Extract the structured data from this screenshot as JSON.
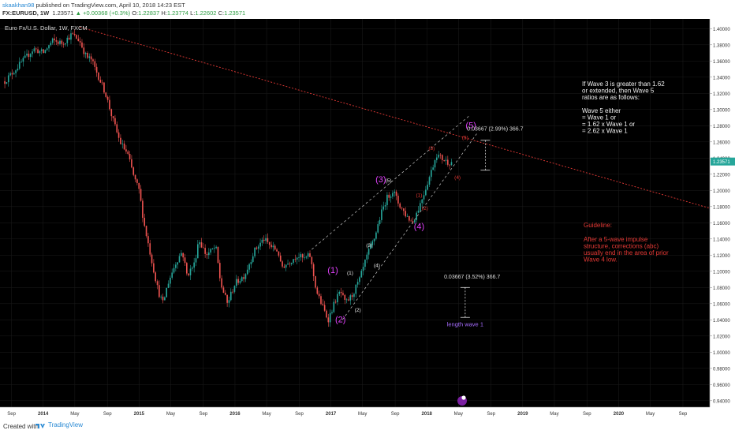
{
  "header": {
    "author": "skaakhan98",
    "published_text": " published on TradingView.com, April 10, 2018 14:23 EST",
    "symbol_line": "FX:EURUSD, 1W",
    "last": "1.23571",
    "change": "▲ +0.00368 (+0.3%)",
    "o_label": "O:",
    "o": "1.22837",
    "h_label": "H:",
    "h": "1.23774",
    "l_label": "L:",
    "l": "1.22602",
    "c_label": "C:",
    "c": "1.23571"
  },
  "footer": {
    "created_with": "Created with",
    "brand": "TradingView"
  },
  "chart_data": {
    "type": "candlestick",
    "title": "Euro Fx/U.S. Dollar, 1W, FXCM",
    "x_ticks": [
      "Sep",
      "2014",
      "May",
      "Sep",
      "2015",
      "May",
      "Sep",
      "2016",
      "May",
      "Sep",
      "2017",
      "May",
      "Sep",
      "2018",
      "May",
      "Sep",
      "2019",
      "May",
      "Sep",
      "2020",
      "May",
      "Sep"
    ],
    "y_ticks": [
      "1.40000",
      "1.38000",
      "1.36000",
      "1.34000",
      "1.32000",
      "1.30000",
      "1.28000",
      "1.26000",
      "1.24000",
      "1.22000",
      "1.20000",
      "1.18000",
      "1.16000",
      "1.14000",
      "1.12000",
      "1.10000",
      "1.08000",
      "1.06000",
      "1.04000",
      "1.02000",
      "1.00000",
      "0.98000",
      "0.96000",
      "0.94000"
    ],
    "ylim": [
      0.932,
      1.412
    ],
    "last_price_label": "1.23571",
    "colors": {
      "up": "#26a69a",
      "down": "#ef5350",
      "background": "#000000",
      "accent": "#e040fb",
      "annotation_red": "#e53935"
    },
    "price_path": [
      [
        2013.6,
        1.335
      ],
      [
        2013.75,
        1.355
      ],
      [
        2013.9,
        1.375
      ],
      [
        2014.0,
        1.37
      ],
      [
        2014.1,
        1.385
      ],
      [
        2014.2,
        1.382
      ],
      [
        2014.3,
        1.393
      ],
      [
        2014.38,
        1.385
      ],
      [
        2014.45,
        1.365
      ],
      [
        2014.5,
        1.362
      ],
      [
        2014.58,
        1.34
      ],
      [
        2014.65,
        1.32
      ],
      [
        2014.72,
        1.29
      ],
      [
        2014.8,
        1.26
      ],
      [
        2014.88,
        1.245
      ],
      [
        2014.95,
        1.215
      ],
      [
        2015.0,
        1.2
      ],
      [
        2015.05,
        1.16
      ],
      [
        2015.12,
        1.12
      ],
      [
        2015.2,
        1.075
      ],
      [
        2015.25,
        1.06
      ],
      [
        2015.3,
        1.085
      ],
      [
        2015.38,
        1.11
      ],
      [
        2015.45,
        1.125
      ],
      [
        2015.5,
        1.095
      ],
      [
        2015.58,
        1.11
      ],
      [
        2015.62,
        1.14
      ],
      [
        2015.7,
        1.12
      ],
      [
        2015.8,
        1.13
      ],
      [
        2015.85,
        1.085
      ],
      [
        2015.92,
        1.06
      ],
      [
        2016.0,
        1.085
      ],
      [
        2016.1,
        1.095
      ],
      [
        2016.2,
        1.125
      ],
      [
        2016.3,
        1.14
      ],
      [
        2016.38,
        1.13
      ],
      [
        2016.45,
        1.125
      ],
      [
        2016.48,
        1.105
      ],
      [
        2016.55,
        1.11
      ],
      [
        2016.65,
        1.12
      ],
      [
        2016.72,
        1.115
      ],
      [
        2016.78,
        1.12
      ],
      [
        2016.85,
        1.075
      ],
      [
        2016.9,
        1.06
      ],
      [
        2016.97,
        1.04
      ],
      [
        2017.05,
        1.065
      ],
      [
        2017.1,
        1.075
      ],
      [
        2017.15,
        1.06
      ],
      [
        2017.22,
        1.07
      ],
      [
        2017.3,
        1.09
      ],
      [
        2017.38,
        1.12
      ],
      [
        2017.45,
        1.14
      ],
      [
        2017.52,
        1.17
      ],
      [
        2017.58,
        1.19
      ],
      [
        2017.65,
        1.2
      ],
      [
        2017.7,
        1.185
      ],
      [
        2017.78,
        1.17
      ],
      [
        2017.85,
        1.16
      ],
      [
        2017.92,
        1.18
      ],
      [
        2017.98,
        1.2
      ],
      [
        2018.05,
        1.225
      ],
      [
        2018.1,
        1.245
      ],
      [
        2018.15,
        1.24
      ],
      [
        2018.22,
        1.235
      ],
      [
        2018.27,
        1.235
      ]
    ],
    "annotations": {
      "wave_labels": [
        {
          "text": "(1)",
          "x": 2017.02,
          "y": 1.098
        },
        {
          "text": "(2)",
          "x": 2017.1,
          "y": 1.037
        },
        {
          "text": "(3)",
          "x": 2017.52,
          "y": 1.21
        },
        {
          "text": "(4)",
          "x": 2017.92,
          "y": 1.152
        },
        {
          "text": "(5)",
          "x": 2018.46,
          "y": 1.277
        },
        {
          "text": "(1)",
          "x": 2017.2,
          "y": 1.096
        },
        {
          "text": "(2)",
          "x": 2017.28,
          "y": 1.05
        },
        {
          "text": "(3)",
          "x": 2017.4,
          "y": 1.13
        },
        {
          "text": "(4)",
          "x": 2017.48,
          "y": 1.105
        },
        {
          "text": "(5)",
          "x": 2017.6,
          "y": 1.21
        },
        {
          "text": "(1)",
          "x": 2017.92,
          "y": 1.192
        },
        {
          "text": "(2)",
          "x": 2017.98,
          "y": 1.176
        },
        {
          "text": "(3)",
          "x": 2018.05,
          "y": 1.25
        },
        {
          "text": "(4)",
          "x": 2018.32,
          "y": 1.214
        },
        {
          "text": "(5)",
          "x": 2018.4,
          "y": 1.263
        }
      ],
      "measure_top": "0.03667 (2.99%) 366.7",
      "measure_bottom": "0.03667 (3.52%) 366.7",
      "length_label": "length wave 1",
      "note_white": [
        "If Wave 3 is greater than 1.62",
        "or extended, then Wave 5",
        "ratios are as follows:",
        "",
        "Wave 5 either",
        "= Wave 1 or",
        "= 1.62 x Wave 1 or",
        "= 2.62 x Wave 1"
      ],
      "note_red_title": "Guideline:",
      "note_red": [
        "After a 5-wave impulse",
        "structure, corrections (abc)",
        "usually end in the area of prior",
        "Wave 4 low."
      ]
    }
  }
}
